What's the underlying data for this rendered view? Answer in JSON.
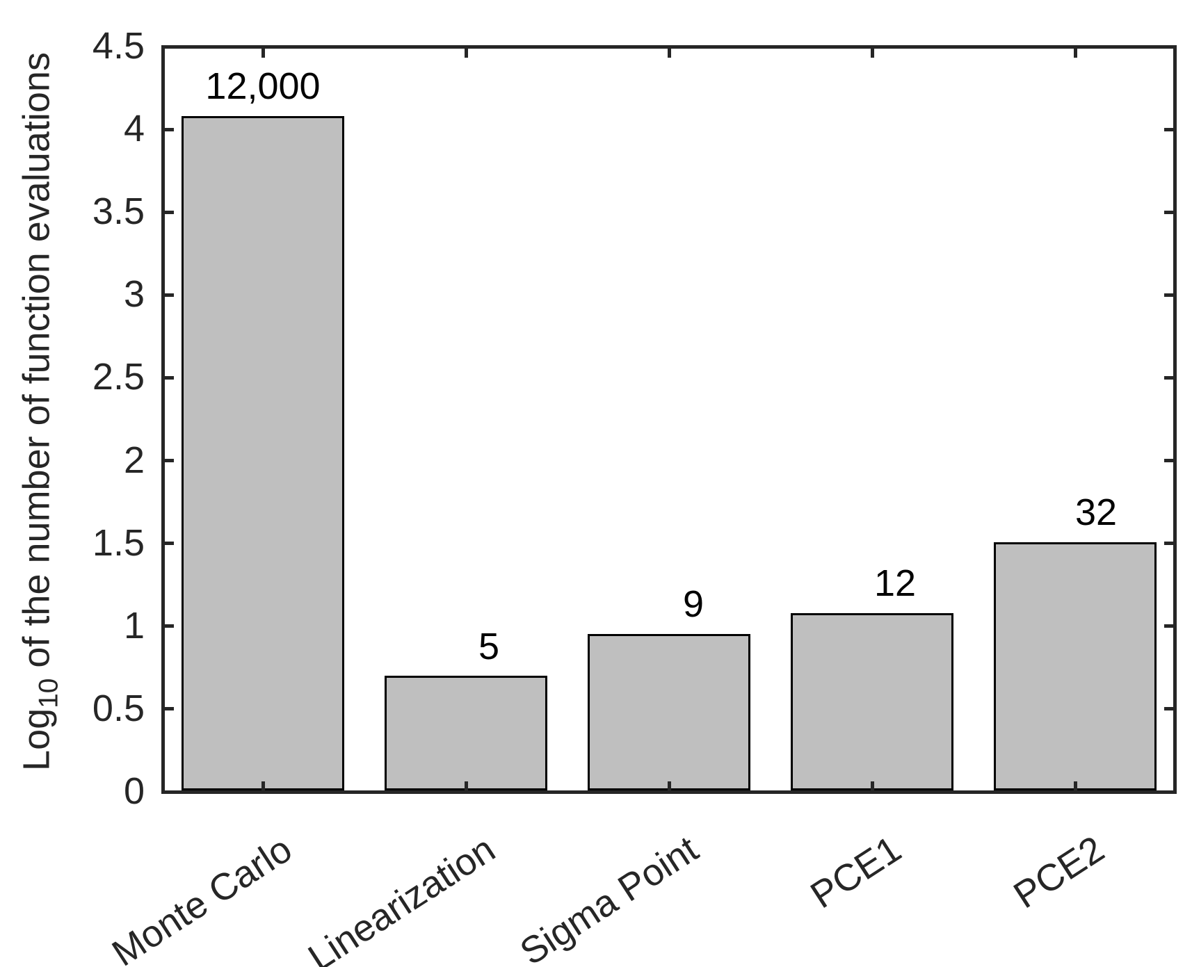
{
  "chart_data": {
    "type": "bar",
    "title": "",
    "categories": [
      "Monte Carlo",
      "Linearization",
      "Sigma Point",
      "PCE1",
      "PCE2"
    ],
    "values": [
      12000,
      5,
      9,
      12,
      32
    ],
    "bar_value_labels": [
      "12,000",
      "5",
      "9",
      "12",
      "32"
    ],
    "log10_values": [
      4.08,
      0.7,
      0.95,
      1.08,
      1.51
    ],
    "y_axis": {
      "label_prefix": "Log",
      "label_subscript": "10",
      "label_suffix": " of the number of function evaluations",
      "ylim": [
        0,
        4.5
      ],
      "tick_values": [
        0,
        0.5,
        1,
        1.5,
        2,
        2.5,
        3,
        3.5,
        4,
        4.5
      ],
      "tick_labels": [
        "0",
        "0.5",
        "1",
        "1.5",
        "2",
        "2.5",
        "3",
        "3.5",
        "4",
        "4.5"
      ],
      "scale_note": "bar height = log10 of value"
    },
    "x_axis": {
      "tick_label_angle_deg": 33
    },
    "layout_hints": {
      "grid": false,
      "legend": null,
      "box": true,
      "tick_direction": "in",
      "bar_width_fraction": 0.8
    },
    "colors": {
      "bar_fill": "#bfbfbf",
      "bar_edge": "#000000",
      "axis": "#262626",
      "tick_text": "#262626",
      "bar_label_text": "#000000",
      "background": "#ffffff"
    }
  }
}
